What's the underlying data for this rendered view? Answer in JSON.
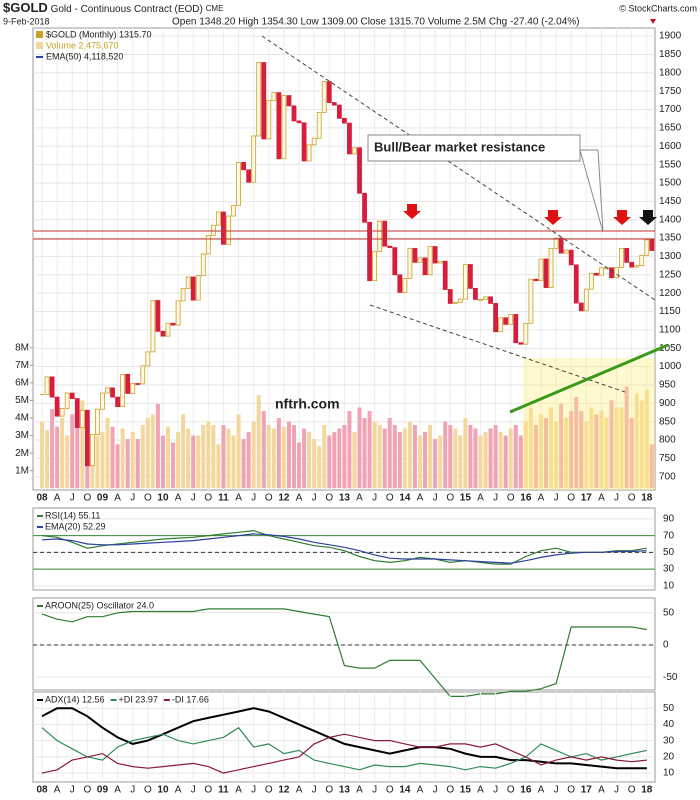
{
  "chart_data": [
    {
      "type": "candlestick",
      "title": "$GOLD",
      "subtitle": "Gold - Continuous Contract (EOD)",
      "exchange": "CME",
      "date": "9-Feb-2018",
      "quote": "Open 1348.20 High 1354.30 Low 1309.00 Close 1315.70 Volume 2.5M Chg -27.40 (-2.04%)",
      "source": "© StockCharts.com",
      "ema_label": "EMA(50) 4,118,520",
      "annotations": [
        "Bull/Bear market resistance",
        "nftrh.com"
      ],
      "grid": true,
      "up_color": "#c9a227",
      "down_color": "#d61e3c",
      "volume_up_color": "#f3d79c",
      "volume_down_color": "#f2a3b3",
      "categories": [
        "08",
        null,
        null,
        "A",
        null,
        null,
        "J",
        null,
        null,
        "O",
        null,
        null,
        "09",
        null,
        null,
        "A",
        null,
        null,
        "J",
        null,
        null,
        "O",
        null,
        null,
        "10",
        null,
        null,
        "A",
        null,
        null,
        "J",
        null,
        null,
        "O",
        null,
        null,
        "11",
        null,
        null,
        "A",
        null,
        null,
        "J",
        null,
        null,
        "O",
        null,
        null,
        "12",
        null,
        null,
        "A",
        null,
        null,
        "J",
        null,
        null,
        "O",
        null,
        null,
        "13",
        null,
        null,
        "A",
        null,
        null,
        "J",
        null,
        null,
        "O",
        null,
        null,
        "14",
        null,
        null,
        "A",
        null,
        null,
        "J",
        null,
        null,
        "O",
        null,
        null,
        "15",
        null,
        null,
        "A",
        null,
        null,
        "J",
        null,
        null,
        "O",
        null,
        null,
        "16",
        null,
        null,
        "A",
        null,
        null,
        "J",
        null,
        null,
        "O",
        null,
        null,
        "17",
        null,
        null,
        "A",
        null,
        null,
        "J",
        null,
        null,
        "O",
        null,
        null,
        "18",
        null
      ],
      "series": [
        {
          "name": "$GOLD (Monthly) 1315.70",
          "color": "#c9a227",
          "values": [
            924,
            972,
            917,
            865,
            886,
            928,
            913,
            834,
            881,
            730,
            815,
            884,
            928,
            942,
            917,
            891,
            979,
            927,
            954,
            953,
            1002,
            1040,
            1180,
            1096,
            1083,
            1118,
            1113,
            1179,
            1213,
            1244,
            1181,
            1248,
            1307,
            1357,
            1385,
            1421,
            1333,
            1410,
            1439,
            1556,
            1536,
            1502,
            1628,
            1828,
            1620,
            1725,
            1746,
            1566,
            1738,
            1710,
            1669,
            1664,
            1560,
            1604,
            1622,
            1692,
            1776,
            1719,
            1712,
            1676,
            1663,
            1579,
            1596,
            1472,
            1393,
            1234,
            1313,
            1396,
            1328,
            1324,
            1250,
            1202,
            1240,
            1322,
            1284,
            1296,
            1250,
            1327,
            1282,
            1287,
            1210,
            1172,
            1175,
            1184,
            1278,
            1213,
            1183,
            1183,
            1190,
            1172,
            1095,
            1133,
            1115,
            1142,
            1065,
            1061,
            1118,
            1238,
            1234,
            1293,
            1215,
            1322,
            1350,
            1309,
            1317,
            1277,
            1173,
            1152,
            1211,
            1254,
            1249,
            1269,
            1269,
            1242,
            1270,
            1322,
            1284,
            1271,
            1275,
            1303,
            1345,
            1316
          ]
        },
        {
          "name": "Volume 2,475,670",
          "color": "#f3d79c",
          "axis": "y2",
          "values": [
            3.8,
            3.3,
            4.5,
            3.5,
            4.0,
            3.0,
            4.2,
            4.5,
            5.0,
            4.2,
            2.6,
            3.0,
            3.2,
            4.0,
            3.5,
            2.5,
            3.4,
            2.8,
            3.2,
            2.8,
            3.6,
            4.0,
            4.2,
            4.8,
            3.0,
            3.5,
            2.6,
            3.2,
            4.2,
            3.4,
            3.0,
            3.0,
            3.6,
            3.8,
            3.6,
            2.5,
            3.6,
            3.4,
            3.0,
            4.2,
            2.8,
            3.2,
            3.8,
            5.3,
            4.4,
            3.6,
            3.4,
            4.0,
            3.5,
            3.8,
            3.6,
            2.6,
            3.4,
            3.2,
            2.8,
            2.4,
            3.6,
            3.0,
            3.2,
            3.4,
            3.6,
            4.4,
            3.2,
            4.6,
            4.0,
            4.4,
            3.8,
            3.6,
            3.4,
            4.0,
            3.6,
            3.2,
            3.4,
            3.8,
            3.6,
            3.0,
            3.2,
            3.6,
            2.8,
            3.0,
            3.8,
            3.6,
            3.4,
            3.0,
            4.0,
            3.6,
            3.4,
            3.0,
            3.2,
            3.4,
            3.6,
            3.2,
            3.0,
            3.4,
            3.6,
            3.0,
            3.8,
            4.6,
            3.6,
            4.2,
            4.0,
            4.6,
            3.8,
            4.8,
            4.0,
            4.4,
            5.2,
            4.4,
            3.8,
            4.6,
            4.2,
            4.4,
            4.0,
            5.0,
            4.6,
            4.6,
            5.8,
            4.0,
            5.4,
            5.0,
            5.6,
            2.5
          ]
        }
      ],
      "ylim": [
        664,
        1922
      ],
      "yticks": [
        700,
        750,
        800,
        850,
        900,
        950,
        1000,
        1050,
        1100,
        1150,
        1200,
        1250,
        1300,
        1350,
        1400,
        1450,
        1500,
        1550,
        1600,
        1650,
        1700,
        1750,
        1800,
        1850,
        1900
      ],
      "y2lim": [
        -0.1,
        26.2
      ],
      "y2ticks": [
        {
          "value": 1,
          "label": "1M"
        },
        {
          "value": 2,
          "label": "2M"
        },
        {
          "value": 3,
          "label": "3M"
        },
        {
          "value": 4,
          "label": "4M"
        },
        {
          "value": 5,
          "label": "5M"
        },
        {
          "value": 6,
          "label": "6M"
        },
        {
          "value": 7,
          "label": "7M"
        },
        {
          "value": 8,
          "label": "8M"
        }
      ]
    },
    {
      "type": "line",
      "ylim": [
        5,
        103
      ],
      "yticks": [
        10,
        30,
        50,
        70,
        90
      ],
      "hlines": [
        {
          "value": 70,
          "color": "#3a8a3a"
        },
        {
          "value": 50,
          "color": "#333"
        },
        {
          "value": 30,
          "color": "#3a8a3a"
        }
      ],
      "series": [
        {
          "name": "RSI(14) 55.11",
          "color": "#2e7d32",
          "values": [
            70,
            68,
            62,
            55,
            58,
            60,
            62,
            64,
            66,
            67,
            68,
            70,
            72,
            74,
            76,
            70,
            66,
            62,
            58,
            56,
            52,
            45,
            40,
            38,
            40,
            44,
            42,
            38,
            40,
            38,
            36,
            36,
            45,
            52,
            55,
            50,
            50,
            50,
            52,
            52,
            55
          ]
        },
        {
          "name": "EMA(20) 52.29",
          "color": "#2f3f9f",
          "values": [
            65,
            66,
            64,
            60,
            59,
            59,
            60,
            61,
            62,
            63,
            64,
            66,
            68,
            70,
            72,
            71,
            69,
            66,
            62,
            59,
            56,
            52,
            47,
            43,
            42,
            42,
            42,
            41,
            40,
            39,
            38,
            37,
            40,
            44,
            47,
            49,
            50,
            50,
            51,
            51,
            52
          ]
        }
      ]
    },
    {
      "type": "line",
      "ylim": [
        -70,
        73
      ],
      "yticks": [
        -50,
        0,
        50
      ],
      "hlines": [
        {
          "value": 0,
          "color": "#333"
        }
      ],
      "series": [
        {
          "name": "AROON(25) Oscillator 24.0",
          "color": "#2e7d32",
          "values": [
            48,
            40,
            36,
            44,
            44,
            50,
            52,
            52,
            52,
            52,
            52,
            56,
            56,
            56,
            56,
            56,
            56,
            52,
            48,
            44,
            -32,
            -36,
            -36,
            -24,
            -24,
            -24,
            -52,
            -80,
            -80,
            -76,
            -76,
            -72,
            -72,
            -68,
            -60,
            28,
            28,
            28,
            28,
            28,
            24
          ]
        }
      ]
    },
    {
      "type": "line",
      "ylim": [
        4.5,
        60
      ],
      "yticks": [
        10,
        20,
        30,
        40,
        50
      ],
      "categories": [
        "08",
        "A",
        "J",
        "O",
        "09",
        "A",
        "J",
        "O",
        "10",
        "A",
        "J",
        "O",
        "11",
        "A",
        "J",
        "O",
        "12",
        "A",
        "J",
        "O",
        "13",
        "A",
        "J",
        "O",
        "14",
        "A",
        "J",
        "O",
        "15",
        "A",
        "J",
        "O",
        "16",
        "A",
        "J",
        "O",
        "17",
        "A",
        "J",
        "O",
        "18"
      ],
      "series": [
        {
          "name": "ADX(14) 12.56",
          "color": "#000000",
          "values": [
            45,
            50,
            50,
            45,
            38,
            32,
            28,
            30,
            34,
            38,
            42,
            44,
            46,
            48,
            50,
            48,
            44,
            40,
            36,
            32,
            28,
            26,
            24,
            22,
            24,
            26,
            26,
            25,
            22,
            20,
            20,
            18,
            18,
            17,
            16,
            16,
            15,
            14,
            13,
            13,
            13
          ]
        },
        {
          "name": "+DI 23.97",
          "color": "#2e8b57",
          "values": [
            38,
            30,
            25,
            20,
            18,
            26,
            30,
            32,
            34,
            30,
            28,
            30,
            32,
            38,
            26,
            28,
            22,
            24,
            18,
            16,
            14,
            12,
            15,
            14,
            14,
            16,
            15,
            14,
            12,
            14,
            13,
            16,
            20,
            28,
            24,
            20,
            22,
            18,
            20,
            22,
            24
          ]
        },
        {
          "name": "-DI 17.66",
          "color": "#8b1a3a",
          "values": [
            10,
            12,
            18,
            20,
            22,
            16,
            14,
            13,
            14,
            15,
            16,
            14,
            10,
            12,
            14,
            16,
            18,
            20,
            28,
            32,
            34,
            32,
            30,
            30,
            28,
            26,
            26,
            28,
            28,
            26,
            28,
            24,
            20,
            15,
            18,
            20,
            18,
            20,
            18,
            17,
            18
          ]
        }
      ]
    }
  ]
}
